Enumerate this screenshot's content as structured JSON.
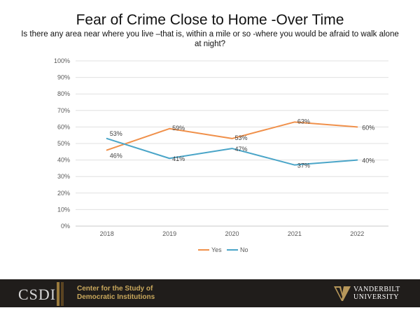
{
  "chart_data": {
    "type": "line",
    "title": "Fear of Crime Close to Home -Over Time",
    "subtitle": "Is there any area near where you live –that is, within a mile or so  -where you would be afraid to walk alone at night?",
    "categories": [
      "2018",
      "2019",
      "2020",
      "2021",
      "2022"
    ],
    "series": [
      {
        "name": "Yes",
        "values": [
          46,
          59,
          53,
          63,
          60
        ],
        "labels": [
          "46%",
          "59%",
          "53%",
          "63%",
          "60%"
        ],
        "color": "#f0904a"
      },
      {
        "name": "No",
        "values": [
          53,
          41,
          47,
          37,
          40
        ],
        "labels": [
          "53%",
          "41%",
          "47%",
          "37%",
          "40%"
        ],
        "color": "#4aa5c8"
      }
    ],
    "yticks": [
      "0%",
      "10%",
      "20%",
      "30%",
      "40%",
      "50%",
      "60%",
      "70%",
      "80%",
      "90%",
      "100%"
    ],
    "ylim": [
      0,
      100
    ],
    "grid": true,
    "legend": "bottom"
  },
  "footer": {
    "csdi_abbrev": "CSDI",
    "csdi_name_line1": "Center for the Study of",
    "csdi_name_line2": "Democratic Institutions",
    "vu_line1": "VANDERBILT",
    "vu_line2": "UNIVERSITY",
    "footer_bg": "#201d1b",
    "csdi_gold": "#c9a85c"
  }
}
